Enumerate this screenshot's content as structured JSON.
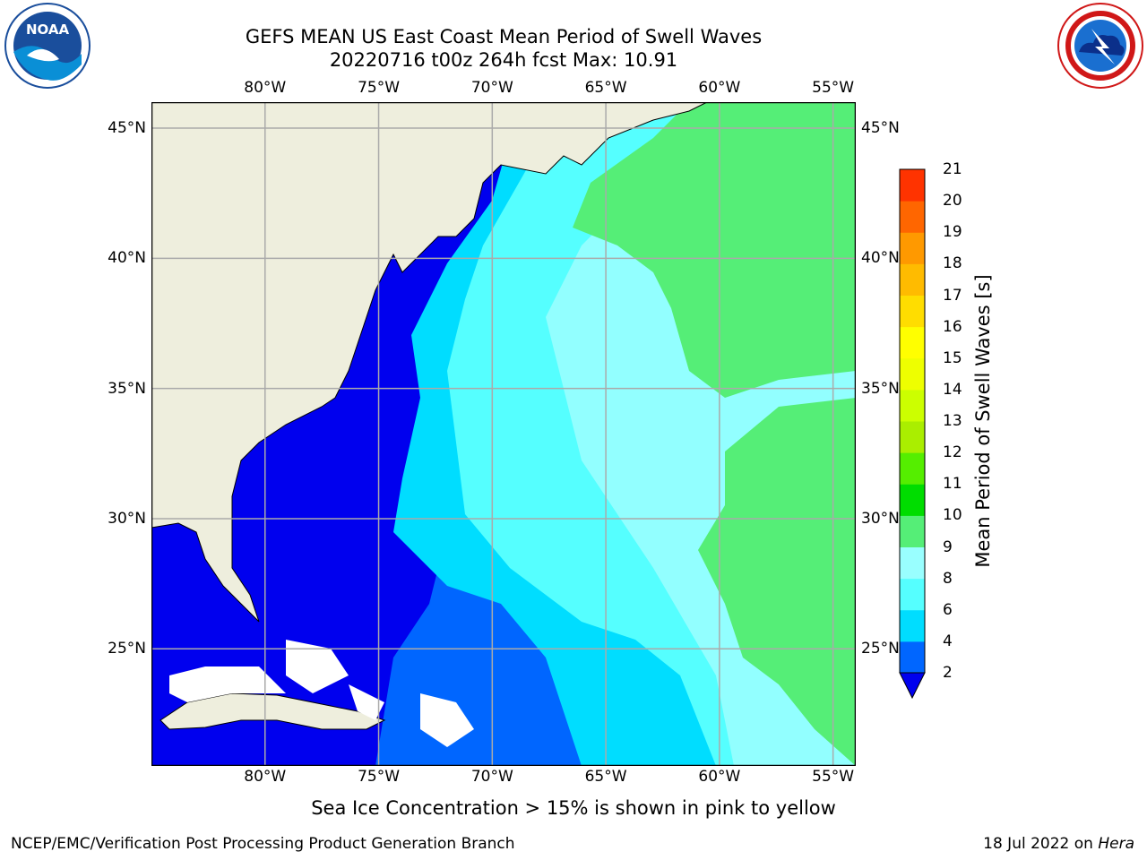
{
  "title": {
    "line1": "GEFS MEAN US East Coast Mean Period of Swell Waves",
    "line2": "20220716 t00z 264h fcst   Max: 10.91"
  },
  "logos": {
    "left": {
      "name": "noaa-logo",
      "text": "NOAA"
    },
    "right": {
      "name": "nws-logo"
    }
  },
  "map": {
    "lon_range": [
      -85,
      -54
    ],
    "lat_range": [
      20.5,
      46
    ],
    "lon_ticks": [
      "80°W",
      "75°W",
      "70°W",
      "65°W",
      "60°W",
      "55°W"
    ],
    "lon_values": [
      -80,
      -75,
      -70,
      -65,
      -60,
      -55
    ],
    "lat_ticks": [
      "45°N",
      "40°N",
      "35°N",
      "30°N",
      "25°N"
    ],
    "lat_values": [
      45,
      40,
      35,
      30,
      25
    ],
    "grid": true,
    "land_color": "#eeeedd"
  },
  "colorbar": {
    "label": "Mean Period of Swell Waves [s]",
    "ticks": [
      "2",
      "4",
      "6",
      "8",
      "9",
      "10",
      "11",
      "12",
      "13",
      "14",
      "15",
      "16",
      "17",
      "18",
      "19",
      "20",
      "21"
    ],
    "colors": [
      "#0066ff",
      "#00ddff",
      "#55ffff",
      "#99ffff",
      "#55ee77",
      "#00dd00",
      "#55ee00",
      "#aaee00",
      "#ccff00",
      "#eeff00",
      "#ffff00",
      "#ffdd00",
      "#ffbb00",
      "#ff9900",
      "#ff6600",
      "#ff3300",
      "#ff0000"
    ],
    "under_color": "#0000ee"
  },
  "note": "Sea Ice Concentration > 15% is shown in pink to yellow",
  "footer": {
    "left": "NCEP/EMC/Verification Post Processing Product Generation Branch",
    "date": "18 Jul 2022 on ",
    "host": "Hera"
  }
}
